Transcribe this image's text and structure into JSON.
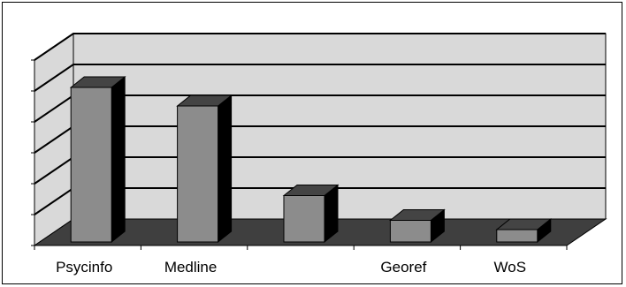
{
  "chart_data": {
    "type": "bar",
    "style": "3d-column",
    "title": "",
    "xlabel": "",
    "ylabel": "",
    "y_tick_labels_shown": false,
    "grid": true,
    "legend": "none",
    "categories": [
      "Psycinfo",
      "Medline",
      "",
      "Georef",
      "WoS"
    ],
    "values": [
      5.0,
      4.4,
      1.5,
      0.7,
      0.4
    ],
    "ylim": [
      0,
      6
    ],
    "colors": {
      "bar_front": "#8c8c8c",
      "bar_top": "#444444",
      "bar_side": "#000000",
      "wall": "#d9d9d9",
      "floor": "#3f3f3f",
      "grid": "#000000"
    }
  }
}
